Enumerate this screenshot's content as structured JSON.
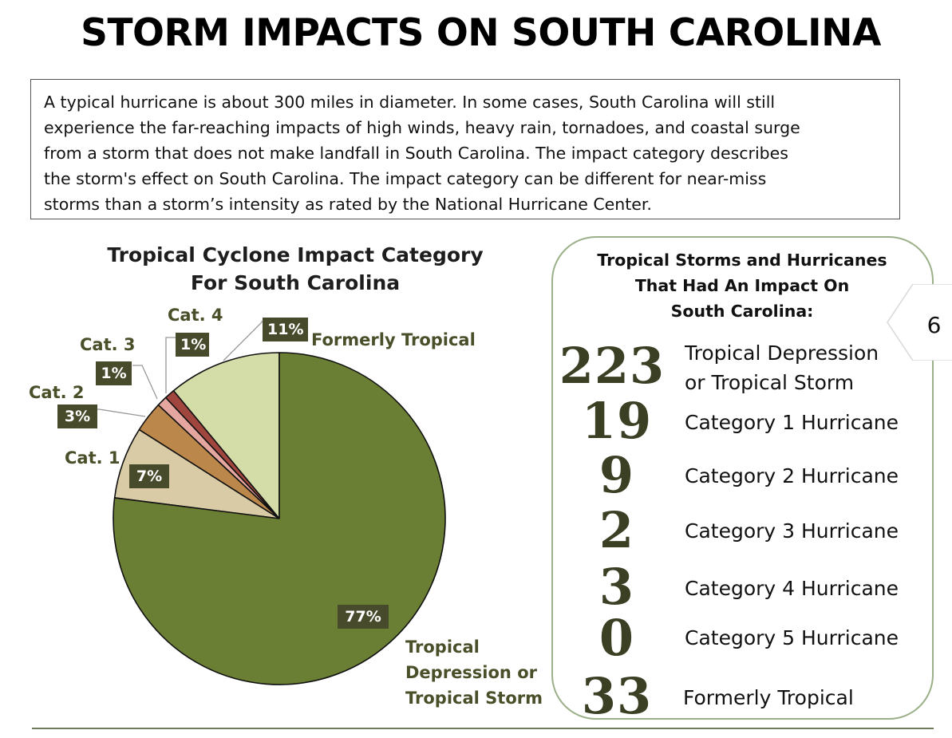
{
  "title": "STORM IMPACTS ON SOUTH CAROLINA",
  "intro_lines": [
    "A typical hurricane is about 300 miles in diameter. In some cases, South Carolina will still",
    "experience the far-reaching impacts of high winds, heavy rain, tornadoes, and coastal surge",
    "from a storm that does not make landfall in South Carolina. The impact category describes",
    "the storm's effect on South Carolina. The impact category can be different for near-miss",
    "storms than a storm’s intensity as rated by the National Hurricane Center."
  ],
  "chart_data": {
    "type": "pie",
    "title": "Tropical Cyclone Impact Category For South Carolina",
    "title_lines": [
      "Tropical Cyclone Impact Category",
      "For South Carolina"
    ],
    "slices": [
      {
        "label": "Formerly Tropical",
        "pct_label": "11%",
        "value": 11,
        "color": "#d4dca8"
      },
      {
        "label": "Cat. 4",
        "pct_label": "1%",
        "value": 1,
        "color": "#a0463e"
      },
      {
        "label": "Cat. 3",
        "pct_label": "1%",
        "value": 1,
        "color": "#e6a6a0"
      },
      {
        "label": "Cat. 2",
        "pct_label": "3%",
        "value": 3,
        "color": "#bb874b"
      },
      {
        "label": "Cat. 1",
        "pct_label": "7%",
        "value": 7,
        "color": "#d9cba5"
      },
      {
        "label": "Tropical Depression or Tropical Storm",
        "label_lines": [
          "Tropical",
          "Depression or",
          "Tropical Storm"
        ],
        "pct_label": "77%",
        "value": 77,
        "color": "#6a7f34"
      }
    ]
  },
  "panel": {
    "title_lines": [
      "Tropical Storms and Hurricanes",
      "That Had An Impact On",
      "South Carolina:"
    ],
    "rows": [
      {
        "count": "223",
        "lines": [
          "Tropical Depression",
          "or Tropical Storm"
        ]
      },
      {
        "count": "19",
        "lines": [
          "Category 1 Hurricane"
        ]
      },
      {
        "count": "9",
        "lines": [
          "Category 2 Hurricane"
        ]
      },
      {
        "count": "2",
        "lines": [
          "Category 3 Hurricane"
        ]
      },
      {
        "count": "3",
        "lines": [
          "Category 4 Hurricane"
        ]
      },
      {
        "count": "0",
        "lines": [
          "Category 5 Hurricane"
        ]
      },
      {
        "count": "33",
        "lines": [
          "Formerly Tropical"
        ]
      }
    ]
  },
  "page_number": "6",
  "colors": {
    "label_text": "#4a4f2a",
    "pct_box": "#474a2b",
    "panel_border": "#9bb088",
    "leader_line": "#999999"
  }
}
